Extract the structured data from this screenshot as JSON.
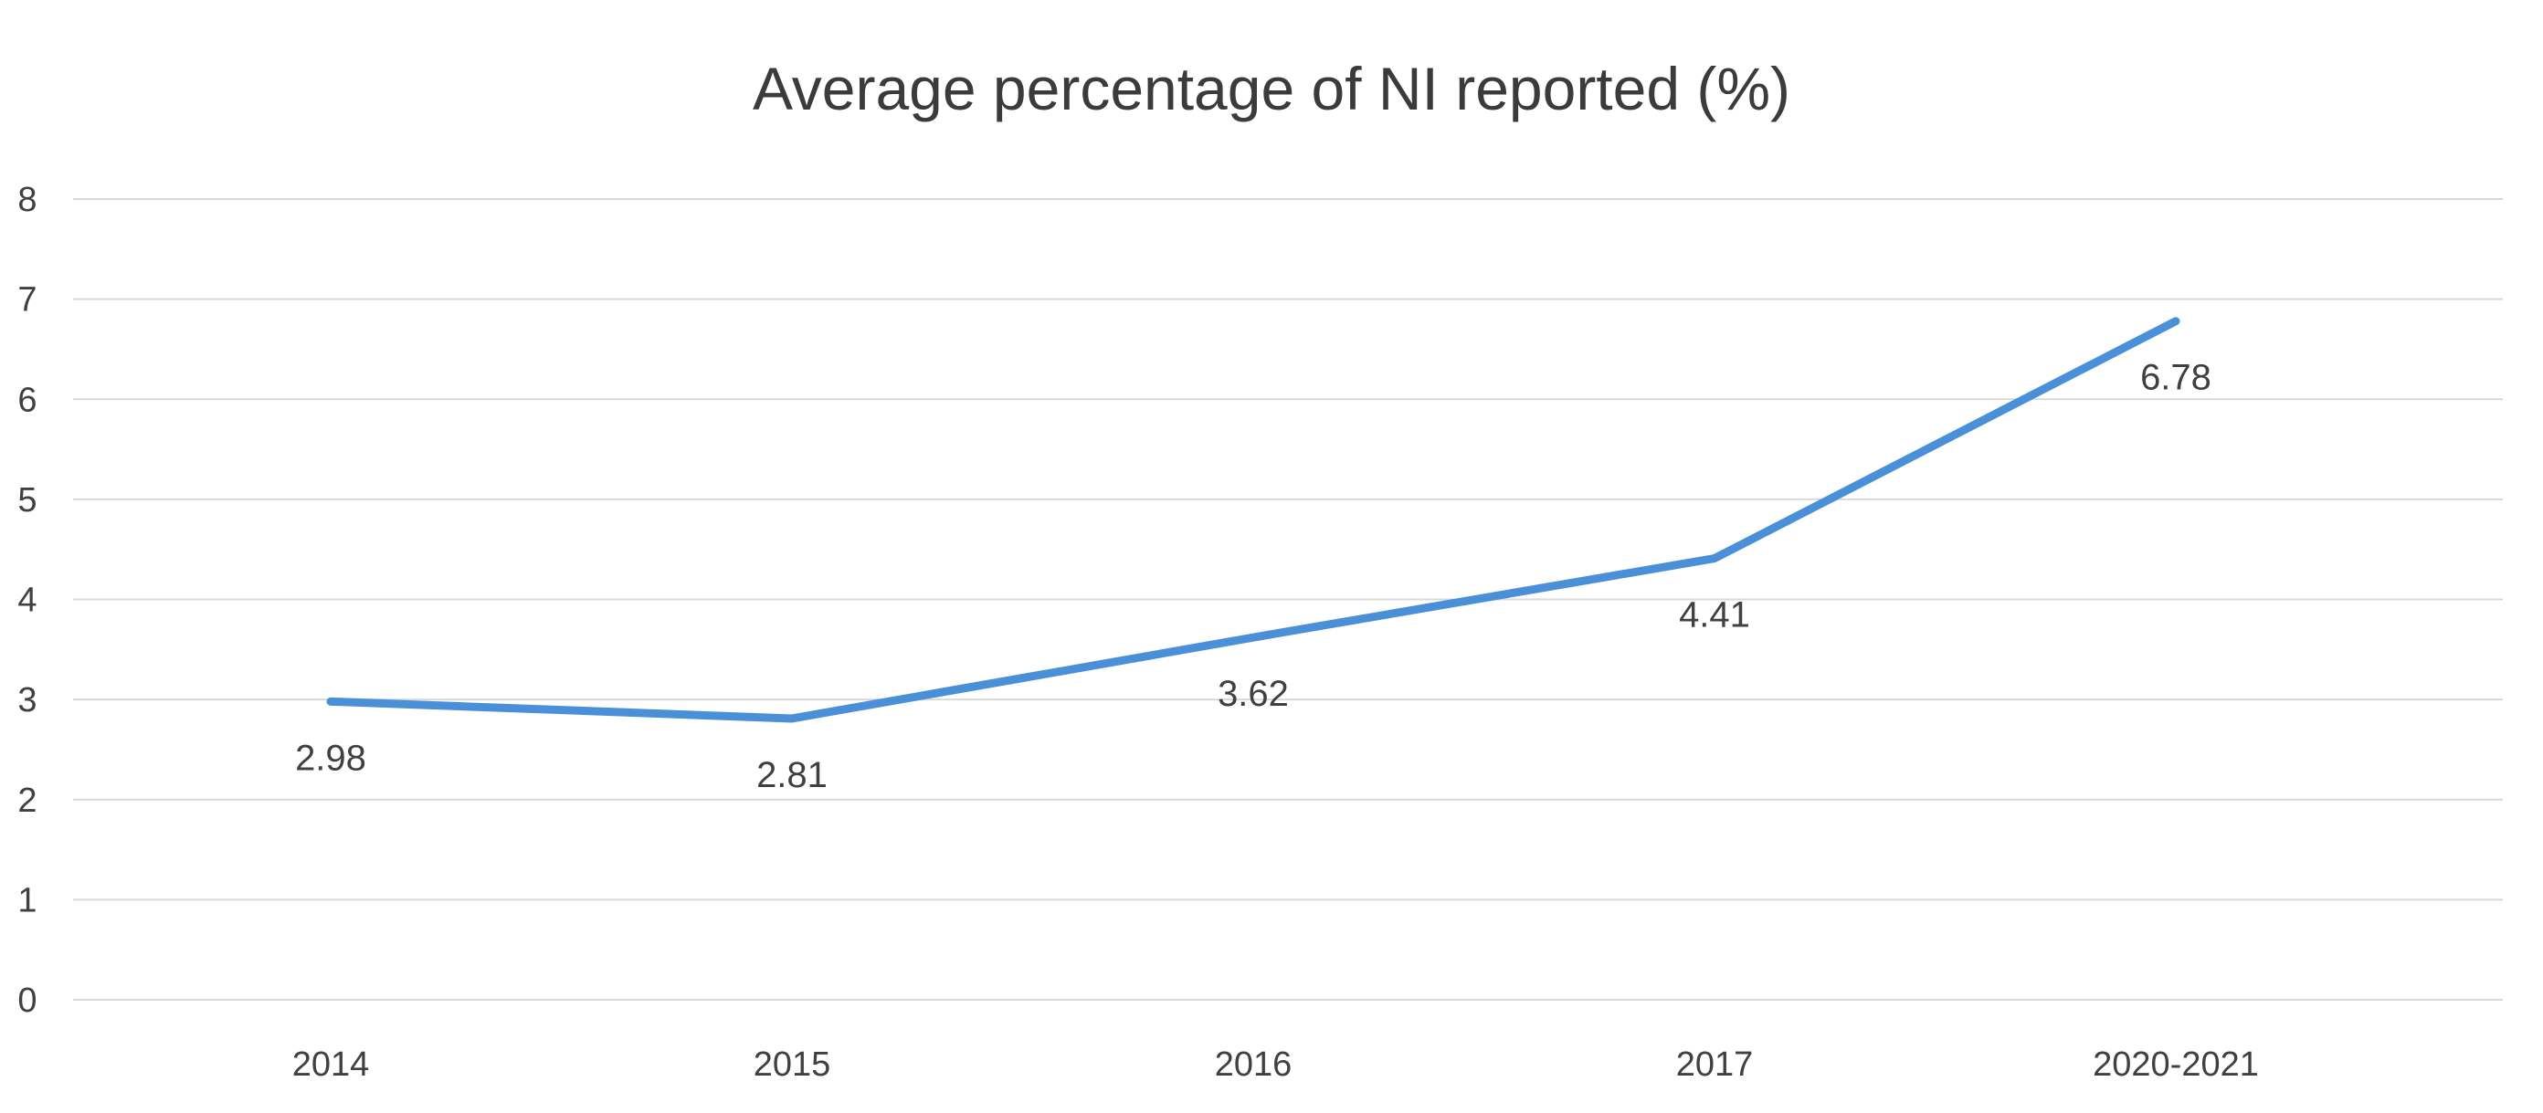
{
  "chart_data": {
    "type": "line",
    "title": "Average percentage of NI reported (%)",
    "xlabel": "",
    "ylabel": "",
    "categories": [
      "2014",
      "2015",
      "2016",
      "2017",
      "2020-2021"
    ],
    "series": [
      {
        "values": [
          2.98,
          2.81,
          3.62,
          4.41,
          6.78
        ],
        "data_labels": [
          "2.98",
          "2.81",
          "3.62",
          "4.41",
          "6.78"
        ]
      }
    ],
    "ylim": [
      0,
      8
    ],
    "yticks": [
      "0",
      "1",
      "2",
      "3",
      "4",
      "5",
      "6",
      "7",
      "8"
    ],
    "grid": true,
    "legend": "none",
    "colors": {
      "series": "#4a90d9",
      "grid": "#d9d9d9",
      "text": "#404040"
    }
  }
}
